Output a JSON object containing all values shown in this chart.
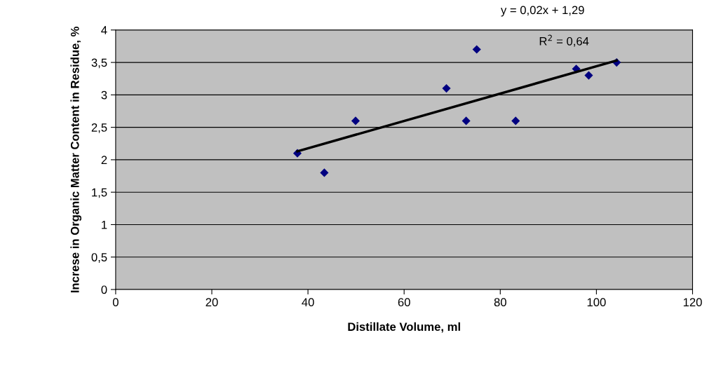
{
  "chart_data": {
    "type": "scatter",
    "xlabel": "Distillate Volume, ml",
    "ylabel": "Increse in Organic Matter Content in Residue, %",
    "series": [
      {
        "color": "#000080",
        "marker": "diamond",
        "x": [
          37.8,
          43.4,
          49.9,
          68.8,
          75.1,
          72.9,
          83.2,
          95.8,
          98.4,
          104.2
        ],
        "values": [
          2.1,
          1.8,
          2.6,
          3.1,
          3.7,
          2.6,
          2.6,
          3.4,
          3.3,
          3.5
        ]
      },
      {
        "type": "line",
        "color": "#000000",
        "x": [
          37.8,
          104.2
        ],
        "values": [
          2.13,
          3.53
        ]
      }
    ],
    "annotations": [
      "y = 0,02x + 1,29",
      "R$^{2}$ = 0,64"
    ],
    "xlim": [
      0,
      120
    ],
    "xticks": [
      0,
      20,
      40,
      60,
      80,
      100,
      120
    ],
    "ylim": [
      0,
      4
    ],
    "yticks": [
      {
        "value": 0,
        "label": "0"
      },
      {
        "value": 0.5,
        "label": "0,5"
      },
      {
        "value": 1,
        "label": "1"
      },
      {
        "value": 1.5,
        "label": "1,5"
      },
      {
        "value": 2,
        "label": "2"
      },
      {
        "value": 2.5,
        "label": "2,5"
      },
      {
        "value": 3,
        "label": "3"
      },
      {
        "value": 3.5,
        "label": "3,5"
      },
      {
        "value": 4,
        "label": "4"
      }
    ],
    "grid": "y"
  }
}
